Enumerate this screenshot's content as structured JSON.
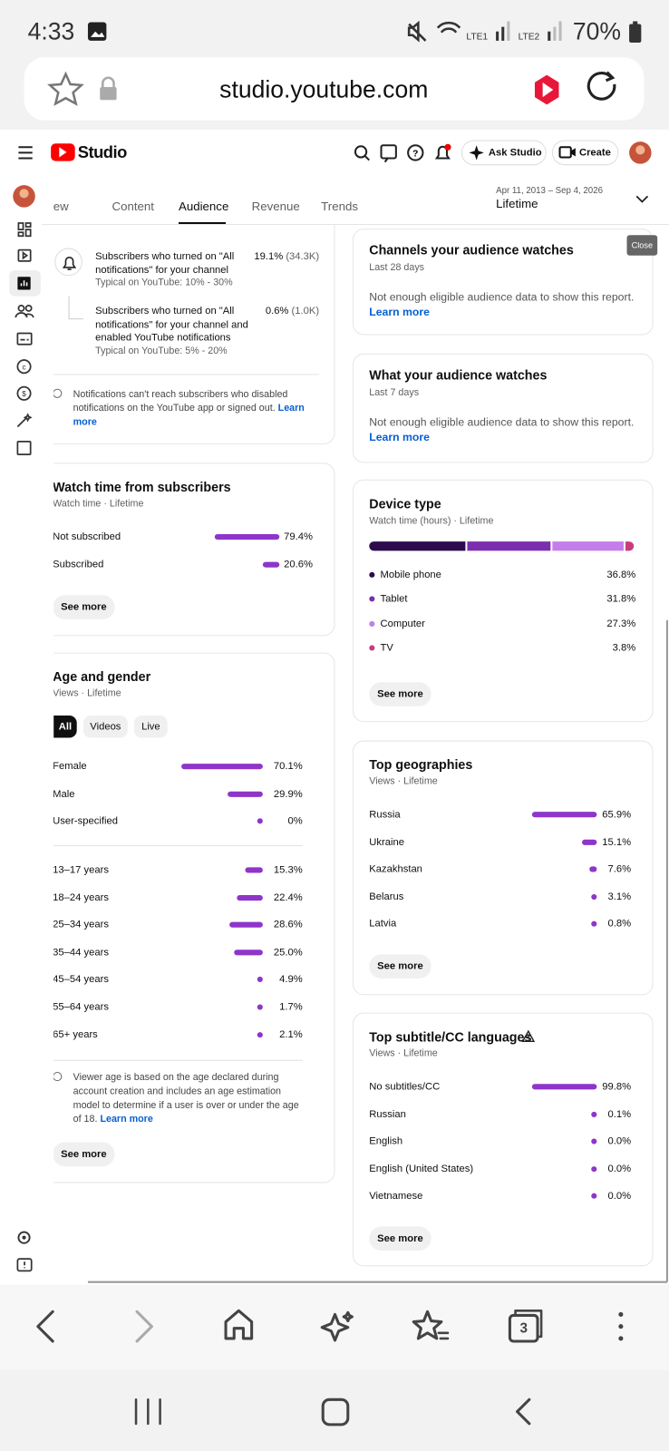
{
  "status_bar": {
    "time": "4:33",
    "network": [
      "LTE1",
      "LTE2"
    ],
    "battery": "70%"
  },
  "browser": {
    "url": "studio.youtube.com",
    "tab_count": "3"
  },
  "header": {
    "brand": "Studio",
    "ask": "Ask Studio",
    "create": "Create"
  },
  "tabs": [
    "Overview",
    "Content",
    "Audience",
    "Revenue",
    "Trends"
  ],
  "active_tab": 2,
  "date_range": {
    "range": "Apr 11, 2013 – Sep 4, 2026",
    "period": "Lifetime"
  },
  "close": "Close",
  "notifications": {
    "items": [
      {
        "text": "Subscribers who turned on \"All notifications\" for your channel",
        "value": "19.1%",
        "count": "(34.3K)",
        "typical": "Typical on YouTube: 10% - 30%"
      },
      {
        "text": "Subscribers who turned on \"All notifications\" for your channel and enabled YouTube notifications",
        "value": "0.6%",
        "count": "(1.0K)",
        "typical": "Typical on YouTube: 5% - 20%"
      }
    ],
    "note": "Notifications can't reach subscribers who disabled notifications on the YouTube app or signed out.",
    "link": "Learn more"
  },
  "watch_time": {
    "title": "Watch time from subscribers",
    "subtitle": "Watch time · Lifetime",
    "rows": [
      {
        "label": "Not subscribed",
        "value": 79.4,
        "value_label": "79.4%"
      },
      {
        "label": "Subscribed",
        "value": 20.6,
        "value_label": "20.6%"
      }
    ],
    "button": "See more"
  },
  "age_gender": {
    "title": "Age and gender",
    "subtitle": "Views · Lifetime",
    "filters": [
      "All",
      "Videos",
      "Live"
    ],
    "gender": [
      {
        "label": "Female",
        "value": 70.1,
        "value_label": "70.1%"
      },
      {
        "label": "Male",
        "value": 29.9,
        "value_label": "29.9%"
      },
      {
        "label": "User-specified",
        "value": 0,
        "value_label": "0%"
      }
    ],
    "age": [
      {
        "label": "13–17 years",
        "value": 15.3,
        "value_label": "15.3%"
      },
      {
        "label": "18–24 years",
        "value": 22.4,
        "value_label": "22.4%"
      },
      {
        "label": "25–34 years",
        "value": 28.6,
        "value_label": "28.6%"
      },
      {
        "label": "35–44 years",
        "value": 25.0,
        "value_label": "25.0%"
      },
      {
        "label": "45–54 years",
        "value": 4.9,
        "value_label": "4.9%"
      },
      {
        "label": "55–64 years",
        "value": 1.7,
        "value_label": "1.7%"
      },
      {
        "label": "65+ years",
        "value": 2.1,
        "value_label": "2.1%"
      }
    ],
    "note": "Viewer age is based on the age declared during account creation and includes an age estimation model to determine if a user is over or under the age of 18.",
    "link": "Learn more",
    "button": "See more"
  },
  "channels": {
    "title": "Channels your audience watches",
    "subtitle": "Last 28 days",
    "message": "Not enough eligible audience data to show this report.",
    "link": "Learn more"
  },
  "watches": {
    "title": "What your audience watches",
    "subtitle": "Last 7 days",
    "message": "Not enough eligible audience data to show this report.",
    "link": "Learn more"
  },
  "device": {
    "title": "Device type",
    "subtitle": "Watch time (hours) · Lifetime",
    "segments": [
      {
        "name": "Mobile phone",
        "color": "#2d0c4e",
        "value": 36.8,
        "value_label": "36.8%"
      },
      {
        "name": "Tablet",
        "color": "#7b2fae",
        "value": 31.8,
        "value_label": "31.8%"
      },
      {
        "name": "Computer",
        "color": "#c37ee9",
        "value": 27.3,
        "value_label": "27.3%"
      },
      {
        "name": "TV",
        "color": "#c83c7e",
        "value": 3.8,
        "value_label": "3.8%"
      }
    ],
    "button": "See more"
  },
  "geographies": {
    "title": "Top geographies",
    "subtitle": "Views · Lifetime",
    "rows": [
      {
        "label": "Russia",
        "value": 65.9,
        "value_label": "65.9%"
      },
      {
        "label": "Ukraine",
        "value": 15.1,
        "value_label": "15.1%"
      },
      {
        "label": "Kazakhstan",
        "value": 7.6,
        "value_label": "7.6%"
      },
      {
        "label": "Belarus",
        "value": 3.1,
        "value_label": "3.1%"
      },
      {
        "label": "Latvia",
        "value": 0.8,
        "value_label": "0.8%"
      }
    ],
    "button": "See more"
  },
  "languages": {
    "title": "Top subtitle/CC languages",
    "subtitle": "Views · Lifetime",
    "rows": [
      {
        "label": "No subtitles/CC",
        "value": 99.8,
        "value_label": "99.8%"
      },
      {
        "label": "Russian",
        "value": 0.1,
        "value_label": "0.1%"
      },
      {
        "label": "English",
        "value": 0.0,
        "value_label": "0.0%"
      },
      {
        "label": "English (United States)",
        "value": 0.0,
        "value_label": "0.0%"
      },
      {
        "label": "Vietnamese",
        "value": 0.0,
        "value_label": "0.0%"
      }
    ],
    "button": "See more"
  }
}
